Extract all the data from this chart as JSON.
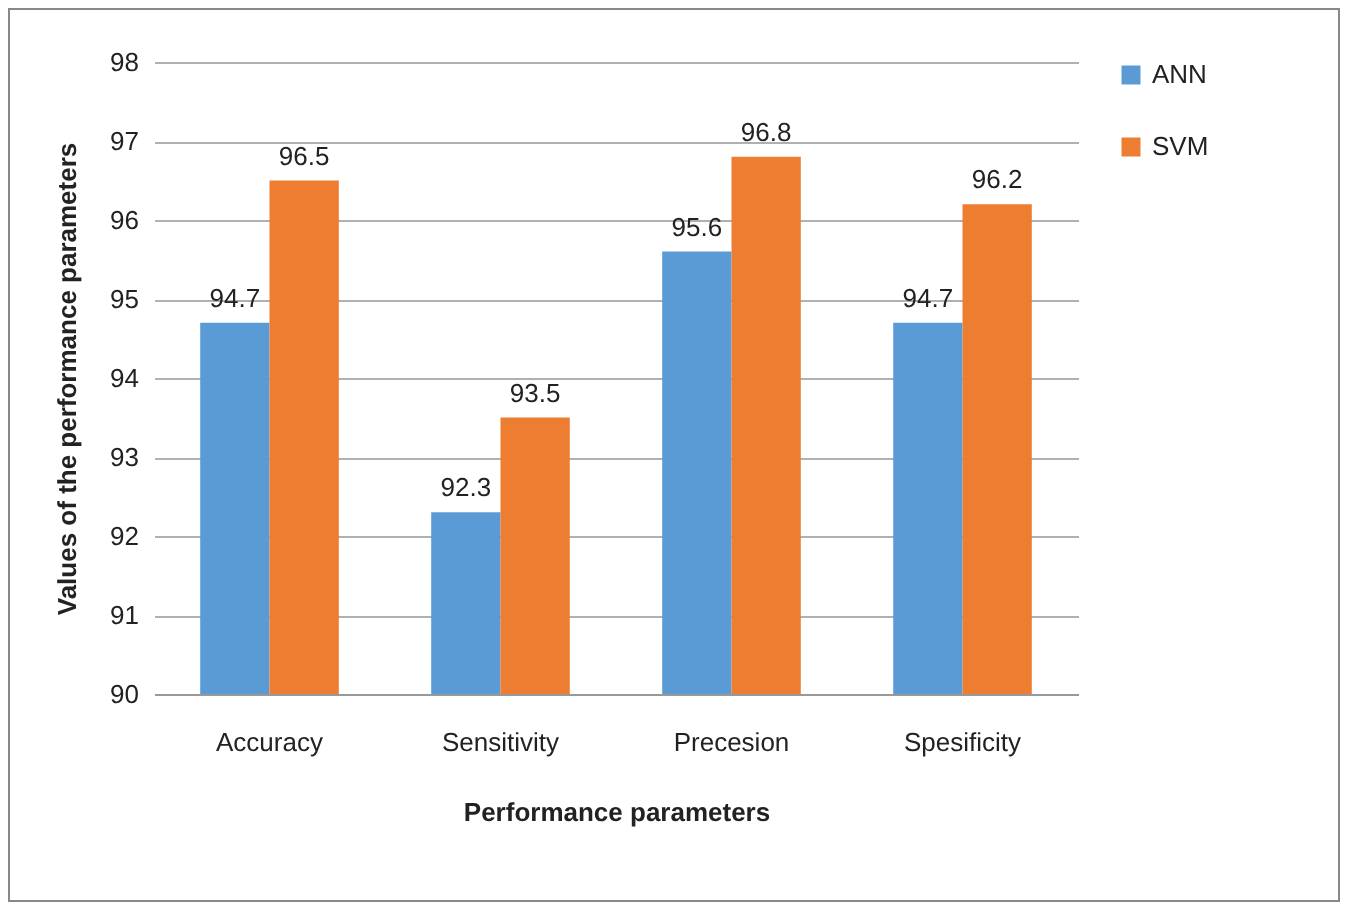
{
  "chart_data": {
    "type": "bar",
    "xlabel": "Performance parameters",
    "ylabel": "Values of the performance parameters",
    "categories": [
      "Accuracy",
      "Sensitivity",
      "Precesion",
      "Spesificity"
    ],
    "series": [
      {
        "name": "ANN",
        "color": "#5b9bd5",
        "values": [
          94.7,
          92.3,
          95.6,
          94.7
        ]
      },
      {
        "name": "SVM",
        "color": "#ed7d31",
        "values": [
          96.5,
          93.5,
          96.8,
          96.2
        ]
      }
    ],
    "ylim": [
      90,
      98
    ],
    "yticks": [
      90,
      91,
      92,
      93,
      94,
      95,
      96,
      97,
      98
    ],
    "grid": "y",
    "legend": "right",
    "data_labels": true
  }
}
